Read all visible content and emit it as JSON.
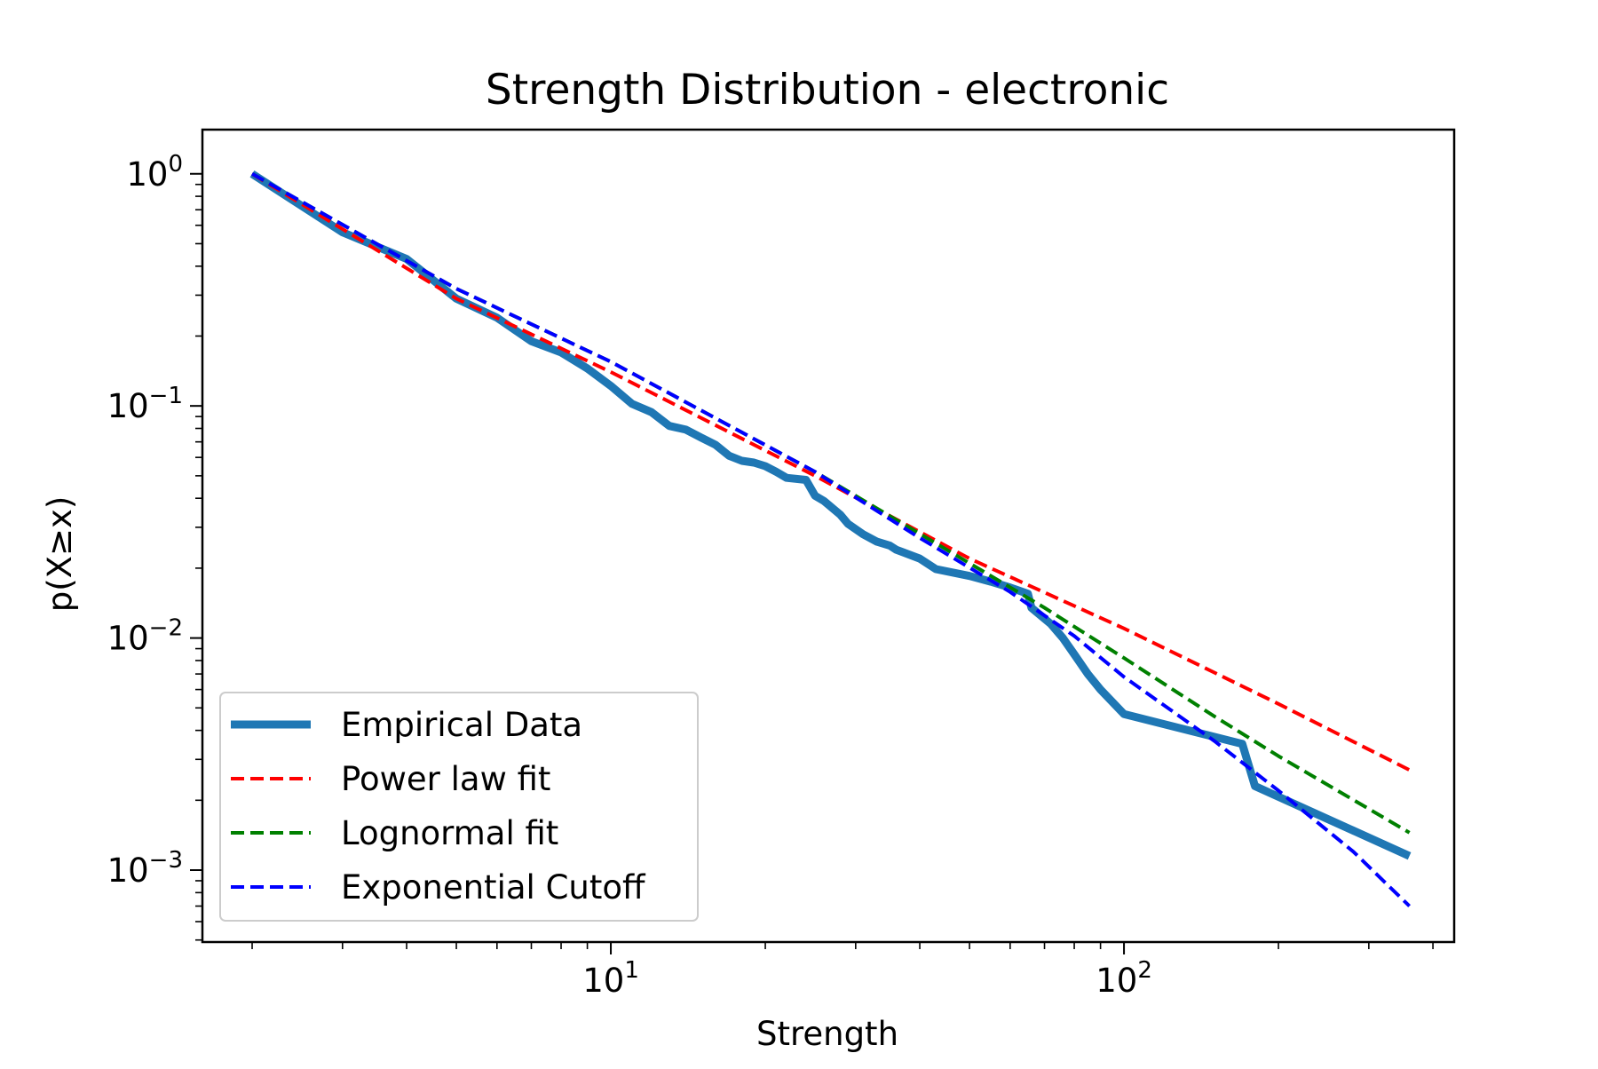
{
  "chart_data": {
    "type": "line",
    "title": "Strength Distribution - electronic",
    "xlabel": "Strength",
    "ylabel": "p(X≥x)",
    "x_scale": "log",
    "y_scale": "log",
    "xlim": [
      1.6,
      440
    ],
    "ylim": [
      0.00049,
      1.55
    ],
    "x_major_ticks": [
      10,
      100
    ],
    "x_major_tick_labels": [
      {
        "base": "10",
        "exp": "1"
      },
      {
        "base": "10",
        "exp": "2"
      }
    ],
    "y_major_ticks": [
      1,
      0.1,
      0.01,
      0.001
    ],
    "y_major_tick_labels": [
      {
        "base": "10",
        "exp": "0"
      },
      {
        "base": "10",
        "exp": "−1"
      },
      {
        "base": "10",
        "exp": "−2"
      },
      {
        "base": "10",
        "exp": "−3"
      }
    ],
    "grid": false,
    "legend_position": "lower-left",
    "series": [
      {
        "name": "Empirical Data",
        "color": "#1f77b4",
        "style": "solid",
        "points": [
          [
            2.0,
            1.0
          ],
          [
            3.0,
            0.56
          ],
          [
            4.0,
            0.43
          ],
          [
            5.0,
            0.29
          ],
          [
            6.0,
            0.24
          ],
          [
            7.0,
            0.19
          ],
          [
            8.0,
            0.17
          ],
          [
            9.0,
            0.145
          ],
          [
            10.0,
            0.122
          ],
          [
            11.0,
            0.102
          ],
          [
            12.0,
            0.094
          ],
          [
            13.0,
            0.082
          ],
          [
            14.0,
            0.079
          ],
          [
            15.0,
            0.073
          ],
          [
            16.0,
            0.068
          ],
          [
            17.0,
            0.061
          ],
          [
            18.0,
            0.058
          ],
          [
            19.0,
            0.057
          ],
          [
            20.0,
            0.055
          ],
          [
            21.0,
            0.052
          ],
          [
            22.0,
            0.049
          ],
          [
            24.0,
            0.048
          ],
          [
            25.0,
            0.041
          ],
          [
            26.0,
            0.039
          ],
          [
            28.0,
            0.034
          ],
          [
            29.0,
            0.031
          ],
          [
            31.0,
            0.028
          ],
          [
            33.0,
            0.026
          ],
          [
            35.0,
            0.025
          ],
          [
            36.0,
            0.024
          ],
          [
            40.0,
            0.022
          ],
          [
            43.0,
            0.0198
          ],
          [
            50.0,
            0.0185
          ],
          [
            55.0,
            0.0175
          ],
          [
            60.0,
            0.0165
          ],
          [
            65.0,
            0.0155
          ],
          [
            66.0,
            0.0135
          ],
          [
            72.0,
            0.0115
          ],
          [
            76.0,
            0.01
          ],
          [
            80.0,
            0.0085
          ],
          [
            85.0,
            0.007
          ],
          [
            90.0,
            0.006
          ],
          [
            100.0,
            0.0047
          ],
          [
            170.0,
            0.0035
          ],
          [
            180.0,
            0.0023
          ],
          [
            360.0,
            0.00115
          ]
        ]
      },
      {
        "name": "Power law fit",
        "color": "#ff0000",
        "style": "dashed",
        "points": [
          [
            2.0,
            1.0
          ],
          [
            5.0,
            0.29
          ],
          [
            10.0,
            0.14
          ],
          [
            25.0,
            0.05
          ],
          [
            50.0,
            0.022
          ],
          [
            100.0,
            0.011
          ],
          [
            200.0,
            0.0052
          ],
          [
            360.0,
            0.0027
          ]
        ]
      },
      {
        "name": "Lognormal fit",
        "color": "#008000",
        "style": "dashed",
        "points": [
          [
            2.0,
            1.0
          ],
          [
            5.0,
            0.32
          ],
          [
            10.0,
            0.155
          ],
          [
            25.0,
            0.052
          ],
          [
            50.0,
            0.021
          ],
          [
            70.0,
            0.0135
          ],
          [
            100.0,
            0.0082
          ],
          [
            150.0,
            0.0046
          ],
          [
            200.0,
            0.0031
          ],
          [
            360.0,
            0.00145
          ]
        ]
      },
      {
        "name": "Exponential Cutoff",
        "color": "#0000ff",
        "style": "dashed",
        "points": [
          [
            2.0,
            1.0
          ],
          [
            5.0,
            0.32
          ],
          [
            10.0,
            0.155
          ],
          [
            25.0,
            0.052
          ],
          [
            40.0,
            0.027
          ],
          [
            60.0,
            0.0158
          ],
          [
            80.0,
            0.0102
          ],
          [
            100.0,
            0.0068
          ],
          [
            150.0,
            0.0036
          ],
          [
            200.0,
            0.0022
          ],
          [
            280.0,
            0.0012
          ],
          [
            360.0,
            0.0007
          ]
        ]
      }
    ]
  }
}
